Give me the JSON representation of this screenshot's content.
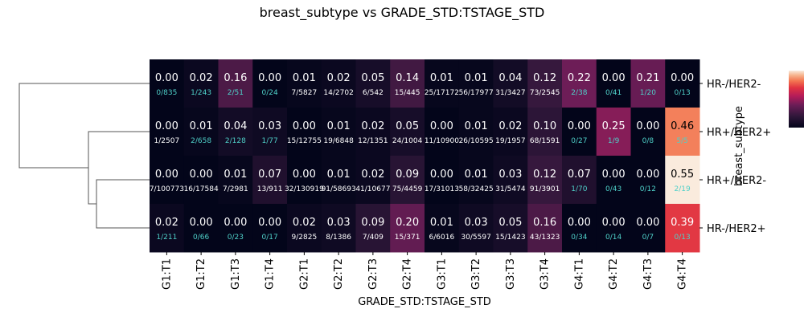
{
  "chart_data": {
    "type": "heatmap",
    "title": "breast_subtype vs GRADE_STD:TSTAGE_STD",
    "xlabel": "GRADE_STD:TSTAGE_STD",
    "ylabel": "breast_subtype",
    "columns": [
      "G1:T1",
      "G1:T2",
      "G1:T3",
      "G1:T4",
      "G2:T1",
      "G2:T2",
      "G2:T3",
      "G2:T4",
      "G3:T1",
      "G3:T2",
      "G3:T3",
      "G3:T4",
      "G4:T1",
      "G4:T2",
      "G4:T3",
      "G4:T4"
    ],
    "rows": [
      "HR-/HER2-",
      "HR+/HER2+",
      "HR+/HER2-",
      "HR-/HER2+"
    ],
    "values": [
      [
        0.0,
        0.02,
        0.16,
        0.0,
        0.01,
        0.02,
        0.05,
        0.14,
        0.01,
        0.01,
        0.04,
        0.12,
        0.22,
        0.0,
        0.21,
        0.0
      ],
      [
        0.0,
        0.01,
        0.04,
        0.03,
        0.0,
        0.01,
        0.02,
        0.05,
        0.0,
        0.01,
        0.02,
        0.1,
        0.0,
        0.25,
        0.0,
        0.46
      ],
      [
        0.0,
        0.0,
        0.01,
        0.07,
        0.0,
        0.01,
        0.02,
        0.09,
        0.0,
        0.01,
        0.03,
        0.12,
        0.07,
        0.0,
        0.0,
        0.55
      ],
      [
        0.02,
        0.0,
        0.0,
        0.0,
        0.02,
        0.03,
        0.09,
        0.2,
        0.01,
        0.03,
        0.05,
        0.16,
        0.0,
        0.0,
        0.0,
        0.39
      ]
    ],
    "value_labels": [
      [
        "0.00",
        "0.02",
        "0.16",
        "0.00",
        "0.01",
        "0.02",
        "0.05",
        "0.14",
        "0.01",
        "0.01",
        "0.04",
        "0.12",
        "0.22",
        "0.00",
        "0.21",
        "0.00"
      ],
      [
        "0.00",
        "0.01",
        "0.04",
        "0.03",
        "0.00",
        "0.01",
        "0.02",
        "0.05",
        "0.00",
        "0.01",
        "0.02",
        "0.10",
        "0.00",
        "0.25",
        "0.00",
        "0.46"
      ],
      [
        "0.00",
        "0.00",
        "0.01",
        "0.07",
        "0.00",
        "0.01",
        "0.02",
        "0.09",
        "0.00",
        "0.01",
        "0.03",
        "0.12",
        "0.07",
        "0.00",
        "0.00",
        "0.55"
      ],
      [
        "0.02",
        "0.00",
        "0.00",
        "0.00",
        "0.02",
        "0.03",
        "0.09",
        "0.20",
        "0.01",
        "0.03",
        "0.05",
        "0.16",
        "0.00",
        "0.00",
        "0.00",
        "0.39"
      ]
    ],
    "count_labels": [
      [
        "0/835",
        "1/243",
        "2/51",
        "0/24",
        "7/5827",
        "14/2702",
        "6/542",
        "15/445",
        "25/17172",
        "56/17977",
        "31/3427",
        "73/2545",
        "2/38",
        "0/41",
        "1/20",
        "0/13"
      ],
      [
        "1/2507",
        "2/658",
        "2/128",
        "1/77",
        "15/12755",
        "19/6848",
        "12/1351",
        "24/1004",
        "11/10900",
        "26/10595",
        "19/1957",
        "68/1591",
        "0/27",
        "1/9",
        "0/8",
        "5/5"
      ],
      [
        "7/100773",
        "16/17584",
        "7/2981",
        "13/911",
        "32/130919",
        "91/58693",
        "41/10677",
        "75/4459",
        "17/31013",
        "58/32425",
        "31/5474",
        "91/3901",
        "1/70",
        "0/43",
        "0/12",
        "2/19"
      ],
      [
        "1/211",
        "0/66",
        "0/23",
        "0/17",
        "9/2825",
        "8/1386",
        "7/409",
        "15/371",
        "6/6016",
        "30/5597",
        "15/1423",
        "43/1323",
        "0/34",
        "0/14",
        "0/7",
        "0/13"
      ]
    ],
    "color_range": [
      0,
      0.55
    ],
    "colormap": "rocket",
    "dendrogram": "rows-left",
    "colorbar": "right"
  }
}
